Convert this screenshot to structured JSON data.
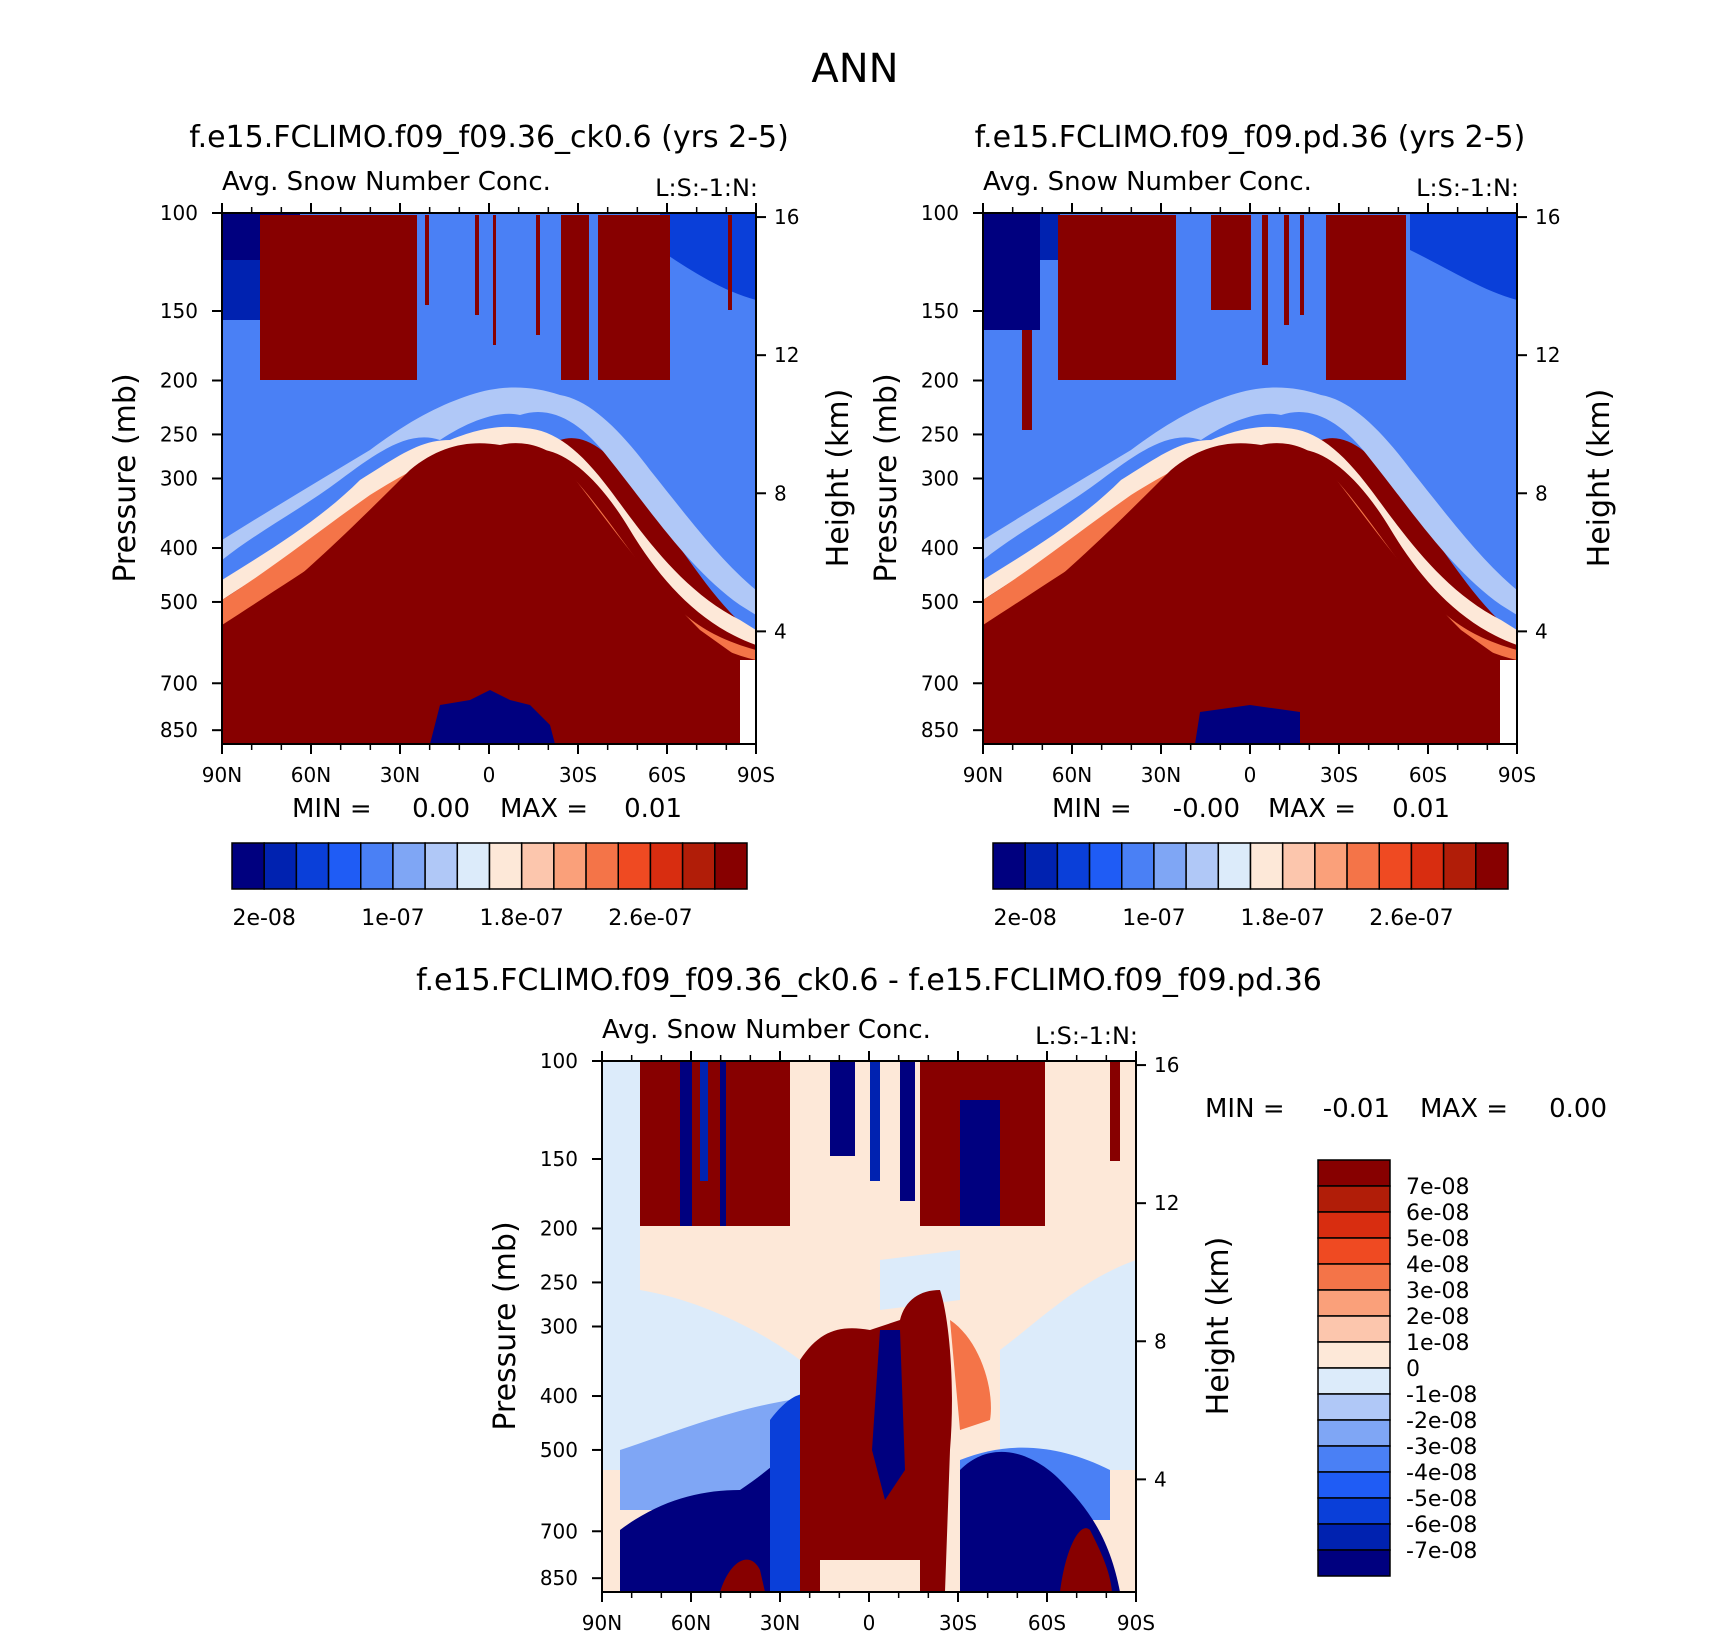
{
  "page_title": "ANN",
  "colors": {
    "abs": [
      "#00007f",
      "#0022b0",
      "#0a3fd9",
      "#1f5cf5",
      "#4a80f5",
      "#7fa6f5",
      "#b0c8f7",
      "#dcebfa",
      "#fde8d8",
      "#fcc6ad",
      "#faa07a",
      "#f47448",
      "#ef4a22",
      "#d82d10",
      "#b11d08",
      "#870000"
    ],
    "diff": [
      "#00007f",
      "#0022b0",
      "#0a3fd9",
      "#1f5cf5",
      "#4a80f5",
      "#7fa6f5",
      "#b0c8f7",
      "#dcebfa",
      "#fde8d8",
      "#fcc6ad",
      "#faa07a",
      "#f47448",
      "#ef4a22",
      "#d82d10",
      "#b11d08",
      "#870000"
    ]
  },
  "chart_data": [
    {
      "type": "heatmap",
      "title": "f.e15.FCLIMO.f09_f09.36_ck0.6 (yrs 2-5)",
      "subtitle": "Avg. Snow Number Conc.",
      "corner_label": "L:S:-1:N:",
      "ylabel": "Pressure (mb)",
      "y2label": "Height (km)",
      "x_ticks": [
        "90N",
        "60N",
        "30N",
        "0",
        "30S",
        "60S",
        "90S"
      ],
      "xlim": [
        -90,
        90
      ],
      "y_ticks": [
        100,
        150,
        200,
        250,
        300,
        400,
        500,
        700,
        850
      ],
      "ylim": [
        100,
        900
      ],
      "yscale": "log",
      "y2_ticks": [
        16,
        12,
        8,
        4
      ],
      "min_text": "MIN =",
      "min_value": "0.00",
      "max_text": "MAX =",
      "max_value": "0.01",
      "colorbar_labels": [
        "2e-08",
        "1e-07",
        "1.8e-07",
        "2.6e-07"
      ]
    },
    {
      "type": "heatmap",
      "title": "f.e15.FCLIMO.f09_f09.pd.36 (yrs 2-5)",
      "subtitle": "Avg. Snow Number Conc.",
      "corner_label": "L:S:-1:N:",
      "ylabel": "Pressure (mb)",
      "y2label": "Height (km)",
      "x_ticks": [
        "90N",
        "60N",
        "30N",
        "0",
        "30S",
        "60S",
        "90S"
      ],
      "xlim": [
        -90,
        90
      ],
      "y_ticks": [
        100,
        150,
        200,
        250,
        300,
        400,
        500,
        700,
        850
      ],
      "ylim": [
        100,
        900
      ],
      "yscale": "log",
      "y2_ticks": [
        16,
        12,
        8,
        4
      ],
      "min_text": "MIN =",
      "min_value": "-0.00",
      "max_text": "MAX =",
      "max_value": "0.01",
      "colorbar_labels": [
        "2e-08",
        "1e-07",
        "1.8e-07",
        "2.6e-07"
      ]
    },
    {
      "type": "heatmap",
      "title": "f.e15.FCLIMO.f09_f09.36_ck0.6 - f.e15.FCLIMO.f09_f09.pd.36",
      "subtitle": "Avg. Snow Number Conc.",
      "corner_label": "L:S:-1:N:",
      "ylabel": "Pressure (mb)",
      "y2label": "Height (km)",
      "x_ticks": [
        "90N",
        "60N",
        "30N",
        "0",
        "30S",
        "60S",
        "90S"
      ],
      "xlim": [
        -90,
        90
      ],
      "y_ticks": [
        100,
        150,
        200,
        250,
        300,
        400,
        500,
        700,
        850
      ],
      "ylim": [
        100,
        900
      ],
      "yscale": "log",
      "y2_ticks": [
        16,
        12,
        8,
        4
      ],
      "min_text": "MIN =",
      "min_value": "-0.01",
      "max_text": "MAX =",
      "max_value": "0.00",
      "colorbar_labels": [
        "7e-08",
        "6e-08",
        "5e-08",
        "4e-08",
        "3e-08",
        "2e-08",
        "1e-08",
        "0",
        "-1e-08",
        "-2e-08",
        "-3e-08",
        "-4e-08",
        "-5e-08",
        "-6e-08",
        "-7e-08"
      ]
    }
  ]
}
